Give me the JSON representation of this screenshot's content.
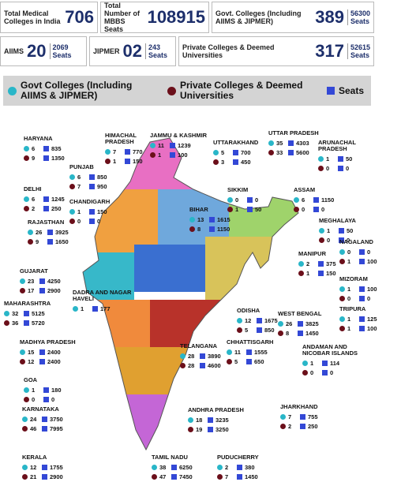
{
  "header": {
    "stats": [
      {
        "label": "Total Medical Colleges in India",
        "value": 706
      },
      {
        "label": "Total Number of MBBS Seats",
        "value": 108915
      },
      {
        "label": "Govt. Colleges (Including AIIMS & JIPMER)",
        "value": 389,
        "seats": 56300,
        "unit": "Seats"
      }
    ],
    "substats": [
      {
        "label": "AIIMS",
        "value": 20,
        "seats": 2069,
        "unit": "Seats"
      },
      {
        "label": "JIPMER",
        "value": "02",
        "seats": 243,
        "unit": "Seats"
      },
      {
        "label": "Private Colleges & Deemed Universities",
        "value": 317,
        "seats": 52615,
        "unit": "Seats"
      }
    ]
  },
  "legend": {
    "govt": "Govt Colleges (Including AIIMS & JIPMER)",
    "private": "Private Colleges & Deemed Universities",
    "seats": "Seats"
  },
  "states": [
    {
      "name": "HARYANA",
      "govt": {
        "count": 6,
        "seats": 835
      },
      "private": {
        "count": 9,
        "seats": 1350
      }
    },
    {
      "name": "HIMACHAL PRADESH",
      "govt": {
        "count": 7,
        "seats": 770
      },
      "private": {
        "count": 1,
        "seats": 150
      }
    },
    {
      "name": "JAMMU & KASHMIR",
      "govt": {
        "count": 11,
        "seats": 1239
      },
      "private": {
        "count": 1,
        "seats": 100
      }
    },
    {
      "name": "UTTARAKHAND",
      "govt": {
        "count": 5,
        "seats": 700
      },
      "private": {
        "count": 3,
        "seats": 450
      }
    },
    {
      "name": "UTTAR PRADESH",
      "govt": {
        "count": 35,
        "seats": 4303
      },
      "private": {
        "count": 33,
        "seats": 5600
      }
    },
    {
      "name": "ARUNACHAL PRADESH",
      "govt": {
        "count": 1,
        "seats": 50
      },
      "private": {
        "count": 0,
        "seats": 0
      }
    },
    {
      "name": "PUNJAB",
      "govt": {
        "count": 6,
        "seats": 850
      },
      "private": {
        "count": 7,
        "seats": 950
      }
    },
    {
      "name": "DELHI",
      "govt": {
        "count": 6,
        "seats": 1245
      },
      "private": {
        "count": 2,
        "seats": 250
      }
    },
    {
      "name": "CHANDIGARH",
      "govt": {
        "count": 1,
        "seats": 150
      },
      "private": {
        "count": 0,
        "seats": 0
      }
    },
    {
      "name": "SIKKIM",
      "govt": {
        "count": 0,
        "seats": 0
      },
      "private": {
        "count": 1,
        "seats": 50
      }
    },
    {
      "name": "ASSAM",
      "govt": {
        "count": 6,
        "seats": 1150
      },
      "private": {
        "count": 0,
        "seats": 0
      }
    },
    {
      "name": "BIHAR",
      "govt": {
        "count": 13,
        "seats": 1615
      },
      "private": {
        "count": 8,
        "seats": 1150
      }
    },
    {
      "name": "MEGHALAYA",
      "govt": {
        "count": 1,
        "seats": 50
      },
      "private": {
        "count": 0,
        "seats": 0
      }
    },
    {
      "name": "RAJASTHAN",
      "govt": {
        "count": 26,
        "seats": 3925
      },
      "private": {
        "count": 9,
        "seats": 1650
      }
    },
    {
      "name": "NAGALAND",
      "govt": {
        "count": 0,
        "seats": 0
      },
      "private": {
        "count": 1,
        "seats": 100
      }
    },
    {
      "name": "MANIPUR",
      "govt": {
        "count": 2,
        "seats": 375
      },
      "private": {
        "count": 1,
        "seats": 150
      }
    },
    {
      "name": "GUJARAT",
      "govt": {
        "count": 23,
        "seats": 4250
      },
      "private": {
        "count": 17,
        "seats": 2900
      }
    },
    {
      "name": "MIZORAM",
      "govt": {
        "count": 1,
        "seats": 100
      },
      "private": {
        "count": 0,
        "seats": 0
      }
    },
    {
      "name": "DADRA AND NAGAR HAVELI",
      "govt": {
        "count": 1,
        "seats": 177
      }
    },
    {
      "name": "MAHARASHTRA",
      "govt": {
        "count": 32,
        "seats": 5125
      },
      "private": {
        "count": 36,
        "seats": 5720
      }
    },
    {
      "name": "TRIPURA",
      "govt": {
        "count": 1,
        "seats": 125
      },
      "private": {
        "count": 1,
        "seats": 100
      }
    },
    {
      "name": "ODISHA",
      "govt": {
        "count": 12,
        "seats": 1675
      },
      "private": {
        "count": 5,
        "seats": 850
      }
    },
    {
      "name": "WEST BENGAL",
      "govt": {
        "count": 26,
        "seats": 3825
      },
      "private": {
        "count": 8,
        "seats": 1450
      }
    },
    {
      "name": "MADHYA PRADESH",
      "govt": {
        "count": 15,
        "seats": 2400
      },
      "private": {
        "count": 12,
        "seats": 2400
      }
    },
    {
      "name": "CHHATTISGARH",
      "govt": {
        "count": 11,
        "seats": 1555
      },
      "private": {
        "count": 5,
        "seats": 650
      }
    },
    {
      "name": "TELANGANA",
      "govt": {
        "count": 28,
        "seats": 3890
      },
      "private": {
        "count": 28,
        "seats": 4600
      }
    },
    {
      "name": "GOA",
      "govt": {
        "count": 1,
        "seats": 180
      },
      "private": {
        "count": 0,
        "seats": 0
      }
    },
    {
      "name": "ANDAMAN AND NICOBAR ISLANDS",
      "govt": {
        "count": 1,
        "seats": 114
      },
      "private": {
        "count": 0,
        "seats": 0
      }
    },
    {
      "name": "KARNATAKA",
      "govt": {
        "count": 24,
        "seats": 3750
      },
      "private": {
        "count": 46,
        "seats": 7995
      }
    },
    {
      "name": "ANDHRA PRADESH",
      "govt": {
        "count": 18,
        "seats": 3235
      },
      "private": {
        "count": 19,
        "seats": 3250
      }
    },
    {
      "name": "JHARKHAND",
      "govt": {
        "count": 7,
        "seats": 755
      },
      "private": {
        "count": 2,
        "seats": 250
      }
    },
    {
      "name": "KERALA",
      "govt": {
        "count": 12,
        "seats": 1755
      },
      "private": {
        "count": 21,
        "seats": 2900
      }
    },
    {
      "name": "TAMIL NADU",
      "govt": {
        "count": 38,
        "seats": 6250
      },
      "private": {
        "count": 47,
        "seats": 7450
      }
    },
    {
      "name": "PUDUCHERRY",
      "govt": {
        "count": 2,
        "seats": 380
      },
      "private": {
        "count": 7,
        "seats": 1450
      }
    }
  ]
}
